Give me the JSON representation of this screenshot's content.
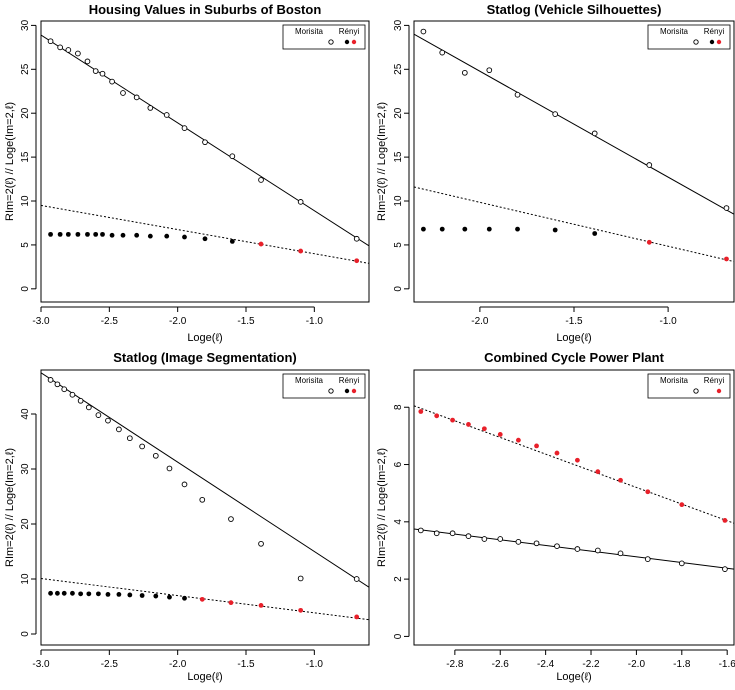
{
  "chart_data": [
    {
      "type": "scatter",
      "title": "Housing Values in Suburbs of Boston",
      "xlabel": "Loge(ℓ)",
      "ylabel": "RIm=2(ℓ) // Loge(Im=2,ℓ)",
      "xlim": [
        -3.0,
        -0.6
      ],
      "ylim": [
        -1.5,
        30.5
      ],
      "xticks": [
        -3.0,
        -2.5,
        -2.0,
        -1.5,
        -1.0
      ],
      "xtick_labels": [
        "-3.0",
        "-2.5",
        "-2.0",
        "-1.5",
        "-1.0"
      ],
      "yticks": [
        0,
        5,
        10,
        15,
        20,
        25,
        30
      ],
      "ytick_labels": [
        "0",
        "5",
        "10",
        "15",
        "20",
        "25",
        "30"
      ],
      "legend": {
        "position": "top-right",
        "entries": [
          "Morisita",
          "Rényi"
        ]
      },
      "series": [
        {
          "name": "Morisita",
          "marker": "open-circle",
          "x": [
            -2.93,
            -2.86,
            -2.8,
            -2.73,
            -2.66,
            -2.6,
            -2.55,
            -2.48,
            -2.4,
            -2.3,
            -2.2,
            -2.08,
            -1.95,
            -1.8,
            -1.6,
            -1.39,
            -1.1,
            -0.69
          ],
          "y": [
            28.2,
            27.5,
            27.2,
            26.8,
            25.9,
            24.8,
            24.5,
            23.6,
            22.3,
            21.8,
            20.6,
            19.8,
            18.3,
            16.7,
            15.1,
            12.4,
            9.9,
            5.7
          ]
        },
        {
          "name": "Rényi",
          "marker": "filled-circle",
          "x": [
            -2.93,
            -2.86,
            -2.8,
            -2.73,
            -2.66,
            -2.6,
            -2.55,
            -2.48,
            -2.4,
            -2.3,
            -2.2,
            -2.08,
            -1.95,
            -1.8,
            -1.6,
            -1.39,
            -1.1,
            -0.69
          ],
          "y": [
            6.2,
            6.2,
            6.2,
            6.2,
            6.2,
            6.2,
            6.2,
            6.1,
            6.1,
            6.1,
            6.0,
            6.0,
            5.9,
            5.7,
            5.4,
            5.1,
            4.3,
            3.2
          ],
          "highlight_last": 3,
          "highlight_color": "#e8202a",
          "base_color": "#000000"
        }
      ],
      "fits": [
        {
          "name": "Morisita fit",
          "style": "solid",
          "x": [
            -3.0,
            -0.6
          ],
          "y": [
            28.9,
            4.9
          ]
        },
        {
          "name": "Rényi fit",
          "style": "dotted",
          "x": [
            -3.0,
            -0.6
          ],
          "y": [
            9.5,
            2.9
          ]
        }
      ]
    },
    {
      "type": "scatter",
      "title": "Statlog (Vehicle Silhouettes)",
      "xlabel": "Loge(ℓ)",
      "ylabel": "RIm=2(ℓ) // Loge(Im=2,ℓ)",
      "xlim": [
        -2.35,
        -0.65
      ],
      "ylim": [
        -1.5,
        30.5
      ],
      "xticks": [
        -2.0,
        -1.5,
        -1.0
      ],
      "xtick_labels": [
        "-2.0",
        "-1.5",
        "-1.0"
      ],
      "yticks": [
        0,
        5,
        10,
        15,
        20,
        25,
        30
      ],
      "ytick_labels": [
        "0",
        "5",
        "10",
        "15",
        "20",
        "25",
        "30"
      ],
      "legend": {
        "position": "top-right",
        "entries": [
          "Morisita",
          "Rényi"
        ]
      },
      "series": [
        {
          "name": "Morisita",
          "marker": "open-circle",
          "x": [
            -2.3,
            -2.2,
            -2.08,
            -1.95,
            -1.8,
            -1.6,
            -1.39,
            -1.1,
            -0.69
          ],
          "y": [
            29.3,
            26.9,
            24.6,
            24.9,
            22.1,
            19.9,
            17.7,
            14.1,
            9.2
          ]
        },
        {
          "name": "Rényi",
          "marker": "filled-circle",
          "x": [
            -2.3,
            -2.2,
            -2.08,
            -1.95,
            -1.8,
            -1.6,
            -1.39,
            -1.1,
            -0.69
          ],
          "y": [
            6.8,
            6.8,
            6.8,
            6.8,
            6.8,
            6.7,
            6.3,
            5.3,
            3.4
          ],
          "highlight_last": 2,
          "highlight_color": "#e8202a",
          "base_color": "#000000"
        }
      ],
      "fits": [
        {
          "name": "Morisita fit",
          "style": "solid",
          "x": [
            -2.35,
            -0.65
          ],
          "y": [
            29.0,
            8.5
          ]
        },
        {
          "name": "Rényi fit",
          "style": "dotted",
          "x": [
            -2.35,
            -0.65
          ],
          "y": [
            11.6,
            3.1
          ]
        }
      ]
    },
    {
      "type": "scatter",
      "title": "Statlog (Image Segmentation)",
      "xlabel": "Loge(ℓ)",
      "ylabel": "RIm=2(ℓ) // Loge(Im=2,ℓ)",
      "xlim": [
        -3.0,
        -0.6
      ],
      "ylim": [
        -2.0,
        48.0
      ],
      "xticks": [
        -3.0,
        -2.5,
        -2.0,
        -1.5,
        -1.0
      ],
      "xtick_labels": [
        "-3.0",
        "-2.5",
        "-2.0",
        "-1.5",
        "-1.0"
      ],
      "yticks": [
        0,
        10,
        20,
        30,
        40
      ],
      "ytick_labels": [
        "0",
        "10",
        "20",
        "30",
        "40"
      ],
      "legend": {
        "position": "top-right",
        "entries": [
          "Morisita",
          "Rényi"
        ]
      },
      "series": [
        {
          "name": "Morisita",
          "marker": "open-circle",
          "x": [
            -2.93,
            -2.88,
            -2.83,
            -2.77,
            -2.71,
            -2.65,
            -2.58,
            -2.51,
            -2.43,
            -2.35,
            -2.26,
            -2.16,
            -2.06,
            -1.95,
            -1.82,
            -1.61,
            -1.39,
            -1.1,
            -0.69
          ],
          "y": [
            46.2,
            45.4,
            44.5,
            43.5,
            42.4,
            41.2,
            39.8,
            38.8,
            37.2,
            35.6,
            34.1,
            32.4,
            30.1,
            27.2,
            24.4,
            20.9,
            16.4,
            10.1,
            10.0
          ],
          "hidden_points_note": "",
          "x_order": "ascending"
        },
        {
          "name": "Rényi",
          "marker": "filled-circle",
          "x": [
            -2.93,
            -2.88,
            -2.83,
            -2.77,
            -2.71,
            -2.65,
            -2.58,
            -2.51,
            -2.43,
            -2.35,
            -2.26,
            -2.16,
            -2.06,
            -1.95,
            -1.82,
            -1.61,
            -1.39,
            -1.1,
            -0.69
          ],
          "y": [
            7.4,
            7.4,
            7.4,
            7.4,
            7.3,
            7.3,
            7.3,
            7.2,
            7.2,
            7.1,
            7.0,
            6.9,
            6.7,
            6.5,
            6.3,
            5.7,
            5.2,
            4.3,
            3.1
          ],
          "highlight_last": 5,
          "highlight_color": "#e8202a",
          "base_color": "#000000"
        }
      ],
      "fits": [
        {
          "name": "Morisita fit",
          "style": "solid",
          "x": [
            -3.0,
            -0.6
          ],
          "y": [
            47.5,
            8.5
          ]
        },
        {
          "name": "Rényi fit",
          "style": "dotted",
          "x": [
            -3.0,
            -0.6
          ],
          "y": [
            10.1,
            2.6
          ]
        }
      ]
    },
    {
      "type": "scatter",
      "title": "Combined Cycle Power Plant",
      "xlabel": "Loge(ℓ)",
      "ylabel": "RIm=2(ℓ) // Loge(Im=2,ℓ)",
      "xlim": [
        -2.98,
        -1.57
      ],
      "ylim": [
        -0.3,
        9.3
      ],
      "xticks": [
        -2.8,
        -2.6,
        -2.4,
        -2.2,
        -2.0,
        -1.8,
        -1.6
      ],
      "xtick_labels": [
        "-2.8",
        "-2.6",
        "-2.4",
        "-2.2",
        "-2.0",
        "-1.8",
        "-1.6"
      ],
      "yticks": [
        0,
        2,
        4,
        6,
        8
      ],
      "ytick_labels": [
        "0",
        "2",
        "4",
        "6",
        "8"
      ],
      "legend": {
        "position": "top-right",
        "entries": [
          "Morisita",
          "Rényi"
        ]
      },
      "series": [
        {
          "name": "Morisita",
          "marker": "open-circle",
          "x": [
            -2.95,
            -2.88,
            -2.81,
            -2.74,
            -2.67,
            -2.6,
            -2.52,
            -2.44,
            -2.35,
            -2.26,
            -2.17,
            -2.07,
            -1.95,
            -1.8,
            -1.61
          ],
          "y": [
            3.7,
            3.6,
            3.6,
            3.5,
            3.4,
            3.4,
            3.3,
            3.25,
            3.15,
            3.05,
            3.0,
            2.9,
            2.7,
            2.55,
            2.35
          ]
        },
        {
          "name": "Rényi",
          "marker": "filled-circle",
          "x": [
            -2.95,
            -2.88,
            -2.81,
            -2.74,
            -2.67,
            -2.6,
            -2.52,
            -2.44,
            -2.35,
            -2.26,
            -2.17,
            -2.07,
            -1.95,
            -1.8,
            -1.61
          ],
          "y": [
            7.85,
            7.7,
            7.55,
            7.4,
            7.25,
            7.05,
            6.85,
            6.65,
            6.4,
            6.15,
            5.75,
            5.45,
            5.05,
            4.6,
            4.05
          ],
          "highlight_last": 15,
          "highlight_color": "#e8202a",
          "base_color": "#000000"
        }
      ],
      "fits": [
        {
          "name": "Morisita fit",
          "style": "solid",
          "x": [
            -2.98,
            -1.57
          ],
          "y": [
            3.75,
            2.35
          ]
        },
        {
          "name": "Rényi fit",
          "style": "dotted",
          "x": [
            -2.98,
            -1.57
          ],
          "y": [
            8.05,
            3.95
          ]
        }
      ]
    }
  ]
}
